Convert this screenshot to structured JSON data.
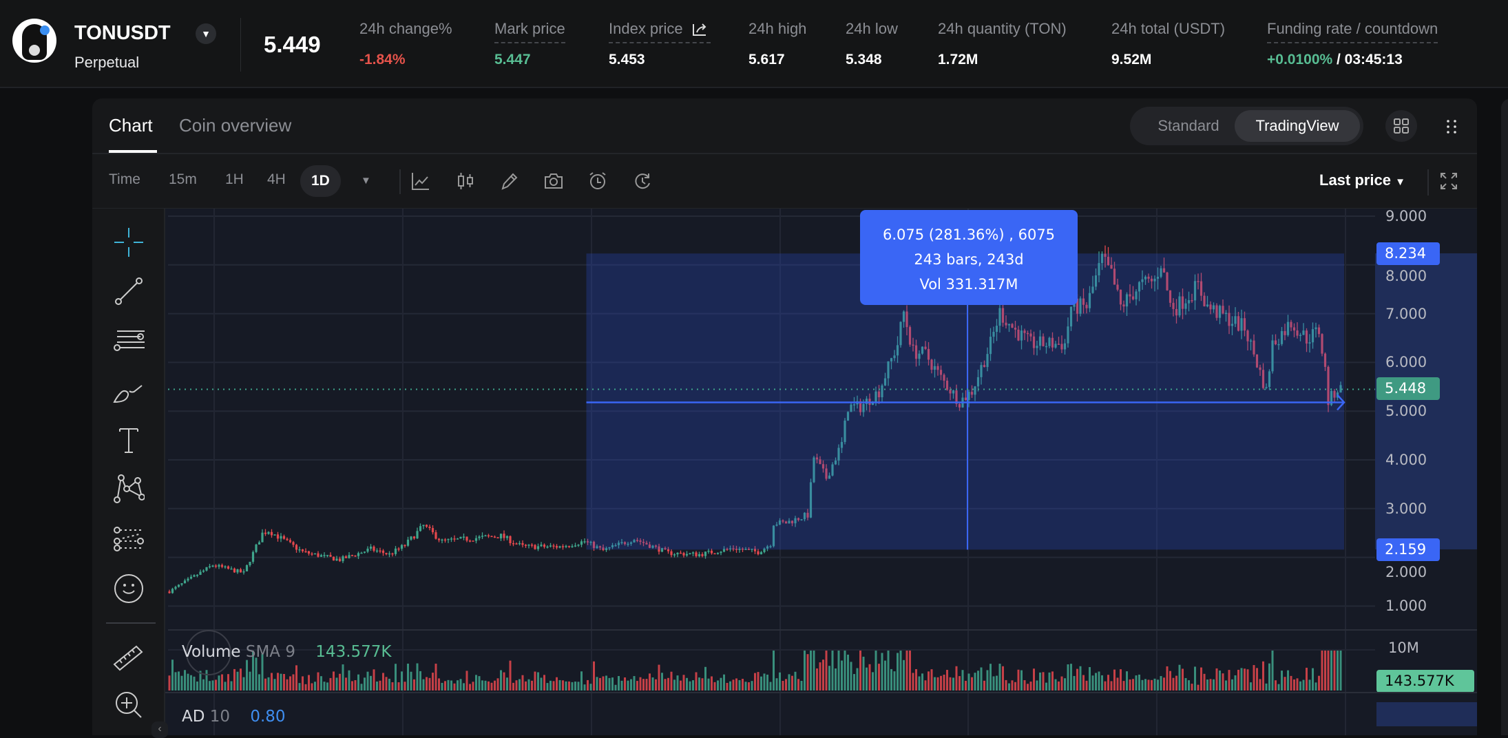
{
  "header": {
    "symbol": "TONUSDT",
    "contract_type": "Perpetual",
    "last_price": "5.449",
    "stats": [
      {
        "label": "24h change%",
        "value": "-1.84%",
        "tone": "down"
      },
      {
        "label": "Mark price",
        "value": "5.447",
        "tone": "up"
      },
      {
        "label": "Index price",
        "value": "5.453",
        "tone": "neutral"
      },
      {
        "label": "24h high",
        "value": "5.617",
        "tone": "neutral"
      },
      {
        "label": "24h low",
        "value": "5.348",
        "tone": "neutral"
      },
      {
        "label": "24h quantity (TON)",
        "value": "1.72M",
        "tone": "neutral"
      },
      {
        "label": "24h total (USDT)",
        "value": "9.52M",
        "tone": "neutral"
      },
      {
        "label": "Funding rate / countdown",
        "value": "+0.0100%",
        "countdown": "/ 03:45:13",
        "tone": "up"
      }
    ]
  },
  "tabs": {
    "chart": "Chart",
    "coin_overview": "Coin overview"
  },
  "view_toggle": {
    "standard": "Standard",
    "tradingview": "TradingView",
    "active": "TradingView"
  },
  "toolbar": {
    "time_label": "Time",
    "intervals": [
      "15m",
      "1H",
      "4H",
      "1D"
    ],
    "active_interval": "1D",
    "price_source": "Last price",
    "icons": [
      "indicator-icon",
      "candle-type-icon",
      "pencil-icon",
      "camera-icon",
      "alarm-icon",
      "replay-icon"
    ]
  },
  "drawing_tools": [
    "crosshair-icon",
    "trend-line-icon",
    "fib-lines-icon",
    "brush-icon",
    "text-icon",
    "pattern-icon",
    "prediction-icon",
    "emoji-icon",
    "ruler-icon",
    "zoom-in-icon"
  ],
  "measure_tooltip": {
    "line1": "6.075 (281.36%) , 6075",
    "line2": "243 bars, 243d",
    "line3": "Vol 331.317M"
  },
  "price_labels": {
    "range_high": "8.234",
    "range_low": "2.159",
    "last": "5.448"
  },
  "volume_indicator": {
    "name": "Volume",
    "params": "SMA 9",
    "value": "143.577K",
    "axis_label": "10M",
    "badge": "143.577K"
  },
  "ad_indicator": {
    "name": "AD",
    "params": "10",
    "value": "0.80"
  },
  "colors": {
    "up": "#3fa58c",
    "down": "#e5484d",
    "accent": "#3a66f5",
    "bg_chart": "#161a25"
  },
  "chart_data": {
    "type": "candlestick",
    "interval": "1D",
    "y_ticks": [
      "9.000",
      "8.000",
      "7.000",
      "6.000",
      "5.000",
      "4.000",
      "3.000",
      "2.000",
      "1.000"
    ],
    "ylim": [
      1,
      9
    ],
    "total_bars": 379,
    "close_path": [
      [
        0,
        1.3
      ],
      [
        14,
        1.84
      ],
      [
        24,
        1.68
      ],
      [
        30,
        2.49
      ],
      [
        32,
        2.55
      ],
      [
        43,
        2.11
      ],
      [
        55,
        1.95
      ],
      [
        65,
        2.17
      ],
      [
        71,
        2.06
      ],
      [
        76,
        2.25
      ],
      [
        82,
        2.65
      ],
      [
        88,
        2.33
      ],
      [
        101,
        2.41
      ],
      [
        107,
        2.44
      ],
      [
        114,
        2.22
      ],
      [
        126,
        2.22
      ],
      [
        134,
        2.33
      ],
      [
        140,
        2.14
      ],
      [
        150,
        2.38
      ],
      [
        161,
        2.09
      ],
      [
        171,
        2.06
      ],
      [
        182,
        2.19
      ],
      [
        190,
        2.11
      ],
      [
        194,
        2.28
      ],
      [
        195,
        2.7
      ],
      [
        199,
        2.71
      ],
      [
        206,
        2.87
      ],
      [
        208,
        4.06
      ],
      [
        212,
        3.63
      ],
      [
        217,
        4.33
      ],
      [
        219,
        5.09
      ],
      [
        223,
        5.09
      ],
      [
        229,
        5.41
      ],
      [
        235,
        6.38
      ],
      [
        237,
        7.03
      ],
      [
        240,
        6.22
      ],
      [
        244,
        6.17
      ],
      [
        249,
        5.68
      ],
      [
        255,
        5.2
      ],
      [
        259,
        5.41
      ],
      [
        265,
        6.38
      ],
      [
        268,
        7.03
      ],
      [
        273,
        6.65
      ],
      [
        278,
        6.38
      ],
      [
        283,
        6.38
      ],
      [
        289,
        6.38
      ],
      [
        291,
        7.14
      ],
      [
        296,
        7.14
      ],
      [
        301,
        8.11
      ],
      [
        304,
        7.79
      ],
      [
        307,
        7.14
      ],
      [
        313,
        7.57
      ],
      [
        318,
        7.68
      ],
      [
        320,
        8.06
      ],
      [
        323,
        7.19
      ],
      [
        325,
        7.14
      ],
      [
        332,
        7.57
      ],
      [
        335,
        7.14
      ],
      [
        341,
        6.92
      ],
      [
        347,
        6.71
      ],
      [
        350,
        6.17
      ],
      [
        354,
        5.41
      ],
      [
        356,
        6.38
      ],
      [
        362,
        6.82
      ],
      [
        367,
        6.49
      ],
      [
        371,
        6.65
      ],
      [
        373,
        5.84
      ],
      [
        374,
        5.2
      ],
      [
        377,
        5.46
      ],
      [
        378,
        5.45
      ]
    ],
    "last_price": 5.448,
    "measure": {
      "from_bar": 135,
      "to_bar": 378,
      "high": 8.234,
      "low": 2.159,
      "base": 5.18
    }
  }
}
